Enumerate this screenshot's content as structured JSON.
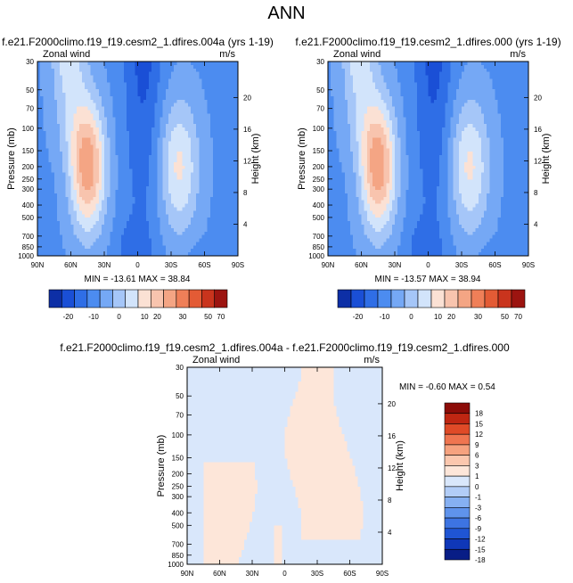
{
  "page_title": "ANN",
  "palette_main": [
    "#0d2fa6",
    "#1a4fd6",
    "#2f6ee6",
    "#4c8cf0",
    "#75a8f5",
    "#a5c6f8",
    "#d2e4fb",
    "#fbe1d4",
    "#f8c4ae",
    "#f4a584",
    "#ef7f58",
    "#e35b35",
    "#c9341d",
    "#9c1410"
  ],
  "palette_diff": [
    "#081d86",
    "#0f37b8",
    "#1f55d4",
    "#3d74e2",
    "#5f93ec",
    "#86b0f2",
    "#b2cdf7",
    "#d9e7fb",
    "#fde6d9",
    "#fbc7ae",
    "#f6a27f",
    "#ef7550",
    "#df4a27",
    "#bf2612",
    "#8c0c08"
  ],
  "chart_data": [
    {
      "type": "contour",
      "title": "f.e21.F2000climo.f19_f19.cesm2_1.dfires.004a (yrs 1-19)",
      "left_label": "Zonal wind",
      "right_label": "m/s",
      "xlabel": "",
      "ylabel": "Pressure (mb)",
      "y2label": "Height (km)",
      "x_ticks": [
        "90N",
        "60N",
        "30N",
        "0",
        "30S",
        "60S",
        "90S"
      ],
      "y_ticks": [
        "30",
        "50",
        "70",
        "100",
        "150",
        "200",
        "250",
        "300",
        "400",
        "500",
        "700",
        "850",
        "1000"
      ],
      "y2_ticks": [
        "4",
        "8",
        "12",
        "16",
        "20"
      ],
      "stats": "MIN = -13.61   MAX = 38.84",
      "colorbar_labels": [
        "-20",
        "-10",
        "0",
        "10",
        "20",
        "30",
        "50",
        "70"
      ]
    },
    {
      "type": "contour",
      "title": "f.e21.F2000climo.f19_f19.cesm2_1.dfires.000 (yrs 1-19)",
      "left_label": "Zonal wind",
      "right_label": "m/s",
      "xlabel": "",
      "ylabel": "Pressure (mb)",
      "y2label": "Height (km)",
      "x_ticks": [
        "90N",
        "60N",
        "30N",
        "0",
        "30S",
        "60S",
        "90S"
      ],
      "y_ticks": [
        "30",
        "50",
        "70",
        "100",
        "150",
        "200",
        "250",
        "300",
        "400",
        "500",
        "700",
        "850",
        "1000"
      ],
      "y2_ticks": [
        "4",
        "8",
        "12",
        "16",
        "20"
      ],
      "stats": "MIN = -13.57   MAX = 38.94",
      "colorbar_labels": [
        "-20",
        "-10",
        "0",
        "10",
        "20",
        "30",
        "50",
        "70"
      ]
    },
    {
      "type": "contour",
      "title": "f.e21.F2000climo.f19_f19.cesm2_1.dfires.004a - f.e21.F2000climo.f19_f19.cesm2_1.dfires.000",
      "left_label": "Zonal wind",
      "right_label": "m/s",
      "xlabel": "",
      "ylabel": "Pressure (mb)",
      "y2label": "Height (km)",
      "x_ticks": [
        "90N",
        "60N",
        "30N",
        "0",
        "30S",
        "60S",
        "90S"
      ],
      "y_ticks": [
        "30",
        "50",
        "70",
        "100",
        "150",
        "200",
        "250",
        "300",
        "400",
        "500",
        "700",
        "850",
        "1000"
      ],
      "y2_ticks": [
        "4",
        "8",
        "12",
        "16",
        "20"
      ],
      "stats": "MIN =  -0.60   MAX =   0.54",
      "colorbar_labels": [
        "18",
        "15",
        "12",
        "9",
        "6",
        "3",
        "1",
        "0",
        "-1",
        "-3",
        "-6",
        "-9",
        "-12",
        "-15",
        "-18"
      ]
    }
  ]
}
